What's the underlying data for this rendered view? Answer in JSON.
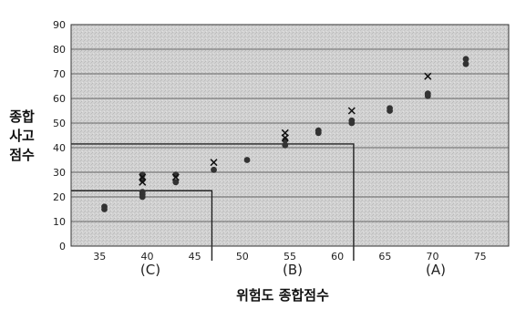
{
  "chart_data": {
    "type": "scatter",
    "ylabel_lines": [
      "종합",
      "사고",
      "점수"
    ],
    "xlabel": "위험도 종합점수",
    "xlim": [
      32,
      78
    ],
    "ylim": [
      0,
      90
    ],
    "x_ticks": [
      35,
      40,
      45,
      50,
      55,
      60,
      65,
      70,
      75
    ],
    "y_ticks": [
      0,
      10,
      20,
      30,
      40,
      50,
      60,
      70,
      80,
      90
    ],
    "grid": true,
    "grid_color": "#666666",
    "background": "#d2d2d2",
    "regions": [
      {
        "label": "(C)",
        "x_center": 39.5
      },
      {
        "label": "(B)",
        "x_center": 54.5
      },
      {
        "label": "(A)",
        "x_center": 69.5
      }
    ],
    "threshold_boxes": [
      {
        "x_max": 46.8,
        "y_max": 22.5
      },
      {
        "x_max": 61.7,
        "y_max": 41.5
      }
    ],
    "series": [
      {
        "marker": "filled-dot",
        "color": "#333333",
        "points": [
          [
            35.5,
            15
          ],
          [
            35.5,
            16
          ],
          [
            39.5,
            20
          ],
          [
            39.5,
            21
          ],
          [
            39.5,
            22
          ],
          [
            39.5,
            27
          ],
          [
            39.5,
            29
          ],
          [
            43.0,
            26
          ],
          [
            43.0,
            29
          ],
          [
            47.0,
            31
          ],
          [
            50.5,
            35
          ],
          [
            54.5,
            41
          ],
          [
            54.5,
            43
          ],
          [
            58.0,
            46
          ],
          [
            58.0,
            47
          ],
          [
            61.5,
            50
          ],
          [
            61.5,
            51
          ],
          [
            65.5,
            55
          ],
          [
            65.5,
            56
          ],
          [
            69.5,
            61
          ],
          [
            69.5,
            62
          ],
          [
            73.5,
            74
          ],
          [
            73.5,
            76
          ]
        ]
      },
      {
        "marker": "x",
        "color": "#111111",
        "points": [
          [
            39.5,
            26
          ],
          [
            39.5,
            28
          ],
          [
            43.0,
            28
          ],
          [
            47.0,
            34
          ],
          [
            54.5,
            44
          ],
          [
            54.5,
            46
          ],
          [
            61.5,
            55
          ],
          [
            69.5,
            69
          ]
        ]
      }
    ]
  }
}
